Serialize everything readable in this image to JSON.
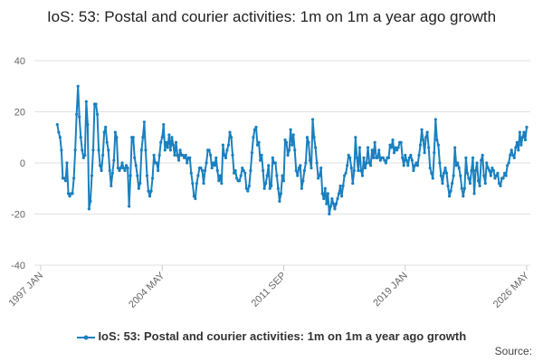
{
  "chart_data": {
    "type": "line",
    "title": "IoS: 53: Postal and courier activities: 1m on 1m a year ago growth",
    "source_label": "Source:",
    "grid": true,
    "ylim": [
      -40,
      40
    ],
    "yticks": [
      -40,
      -20,
      0,
      20,
      40
    ],
    "categories": [
      "1997 JAN",
      null,
      null,
      null,
      null,
      null,
      null,
      null,
      null,
      null,
      null,
      null,
      null,
      null,
      null,
      null,
      null,
      null,
      null,
      null,
      null,
      null,
      null,
      null,
      null,
      null,
      null,
      null,
      null,
      null,
      null,
      null,
      null,
      null,
      null,
      null,
      null,
      null,
      null,
      null,
      null,
      null,
      null,
      null,
      null,
      null,
      null,
      null,
      null,
      null,
      null,
      null,
      null,
      null,
      null,
      null,
      null,
      null,
      null,
      null,
      null,
      null,
      null,
      null,
      null,
      null,
      null,
      null,
      null,
      null,
      null,
      null,
      null,
      null,
      null,
      null,
      null,
      null,
      null,
      null,
      null,
      null,
      null,
      null,
      null,
      null,
      null,
      null,
      "2004 MAY",
      null,
      null,
      null,
      null,
      null,
      null,
      null,
      null,
      null,
      null,
      null,
      null,
      null,
      null,
      null,
      null,
      null,
      null,
      null,
      null,
      null,
      null,
      null,
      null,
      null,
      null,
      null,
      null,
      null,
      null,
      null,
      null,
      null,
      null,
      null,
      null,
      null,
      null,
      null,
      null,
      null,
      null,
      null,
      null,
      null,
      null,
      null,
      null,
      null,
      null,
      null,
      null,
      null,
      null,
      null,
      null,
      null,
      null,
      null,
      null,
      null,
      null,
      null,
      null,
      null,
      null,
      null,
      null,
      null,
      null,
      null,
      null,
      null,
      null,
      null,
      null,
      null,
      null,
      null,
      null,
      null,
      null,
      null,
      null,
      null,
      null,
      null,
      "2011 SEP",
      null,
      null,
      null,
      null,
      null,
      null,
      null,
      null,
      null,
      null,
      null,
      null,
      null,
      null,
      null,
      null,
      null,
      null,
      null,
      null,
      null,
      null,
      null,
      null,
      null,
      null,
      null,
      null,
      null,
      null,
      null,
      null,
      null,
      null,
      null,
      null,
      null,
      null,
      null,
      null,
      null,
      null,
      null,
      null,
      null,
      null,
      null,
      null,
      null,
      null,
      null,
      null,
      null,
      null,
      null,
      null,
      null,
      null,
      null,
      null,
      null,
      null,
      null,
      null,
      null,
      null,
      null,
      null,
      null,
      null,
      null,
      null,
      null,
      null,
      null,
      null,
      null,
      null,
      null,
      null,
      null,
      null,
      null,
      null,
      null,
      null,
      null,
      "2019 JAN",
      null,
      null,
      null,
      null,
      null,
      null,
      null,
      null,
      null,
      null,
      null,
      null,
      null,
      null,
      null,
      null,
      null,
      null,
      null,
      null,
      null,
      null,
      null,
      null,
      null,
      null,
      null,
      null,
      null,
      null,
      null,
      null,
      null,
      null,
      null,
      null,
      null,
      null,
      null,
      null,
      null,
      null,
      null,
      null,
      null,
      null,
      null,
      null,
      null,
      null,
      null,
      null,
      null,
      null,
      null,
      null,
      null,
      null,
      null,
      null,
      null,
      null,
      null,
      null,
      null,
      null,
      null,
      null,
      null,
      null,
      null,
      null,
      null,
      null,
      null,
      null,
      null,
      null,
      null,
      null,
      null,
      null,
      null,
      null,
      null,
      null,
      null,
      "2026 MAY"
    ],
    "series": [
      {
        "name": "IoS: 53: Postal and courier activities: 1m on 1m a year ago growth",
        "color": "#1a80c0",
        "values": [
          null,
          null,
          null,
          null,
          null,
          null,
          null,
          null,
          null,
          null,
          null,
          null,
          15,
          12,
          10,
          5,
          -6,
          -6,
          -7,
          0,
          -12,
          -13,
          -12,
          -12,
          -6,
          5,
          19,
          30,
          18,
          10,
          5,
          2,
          3,
          24,
          15,
          -18,
          -15,
          -5,
          5,
          23,
          23,
          19,
          5,
          -1,
          -3,
          3,
          12,
          14,
          8,
          5,
          -3,
          -9,
          -4,
          1,
          12,
          10,
          -2,
          -3,
          -2,
          0,
          -2,
          -3,
          -1,
          -2,
          -17,
          -5,
          10,
          10,
          2,
          -1,
          -5,
          -10,
          -8,
          5,
          10,
          16,
          5,
          -5,
          -11,
          -13,
          -11,
          -6,
          3,
          0,
          0,
          -3,
          3,
          8,
          10,
          15,
          5,
          8,
          6,
          11,
          5,
          10,
          7,
          3,
          8,
          3,
          1,
          5,
          3,
          3,
          2,
          3,
          0,
          2,
          2,
          -4,
          -8,
          -13,
          -14,
          -8,
          -5,
          -2,
          -2,
          -3,
          -8,
          -3,
          0,
          5,
          5,
          3,
          -2,
          0,
          -1,
          2,
          -3,
          -7,
          -5,
          -8,
          7,
          3,
          2,
          5,
          7,
          12,
          10,
          3,
          -4,
          -3,
          -6,
          -7,
          -7,
          -5,
          -2,
          -3,
          -4,
          -10,
          -11,
          -9,
          -3,
          4,
          10,
          13,
          14,
          7,
          8,
          1,
          3,
          -3,
          -10,
          -8,
          -5,
          -1,
          -10,
          -9,
          2,
          0,
          0,
          -5,
          -10,
          -15,
          -12,
          -5,
          -7,
          9,
          8,
          3,
          5,
          13,
          7,
          11,
          5,
          -3,
          -5,
          -2,
          -1,
          -10,
          -7,
          -3,
          0,
          10,
          8,
          1,
          -2,
          17,
          10,
          6,
          0,
          -6,
          -5,
          -2,
          -12,
          -14,
          -10,
          -16,
          -12,
          -20,
          -17,
          -14,
          -16,
          -18,
          -16,
          -14,
          -12,
          -9,
          -13,
          -9,
          -5,
          -4,
          -1,
          3,
          2,
          -2,
          -8,
          -3,
          10,
          2,
          -3,
          6,
          -3,
          -5,
          2,
          -2,
          0,
          6,
          0,
          -1,
          5,
          2,
          8,
          2,
          2,
          5,
          1,
          2,
          2,
          1,
          0,
          2,
          2,
          7,
          6,
          9,
          4,
          6,
          5,
          6,
          8,
          8,
          2,
          -1,
          3,
          1,
          -1,
          2,
          3,
          1,
          -3,
          -1,
          0,
          -1,
          3,
          7,
          13,
          9,
          4,
          10,
          12,
          6,
          -2,
          -4,
          -6,
          4,
          17,
          9,
          7,
          0,
          -5,
          -8,
          -4,
          -2,
          -4,
          -9,
          -13,
          -11,
          -8,
          -5,
          6,
          -1,
          0,
          -2,
          -5,
          -10,
          -13,
          -10,
          2,
          -4,
          -6,
          -8,
          -3,
          2,
          -12,
          -3,
          0,
          -7,
          -9,
          1,
          3,
          -5,
          -8,
          0,
          -2,
          -3,
          -5,
          -2,
          -3,
          -6,
          -5,
          -4,
          -8,
          -9,
          -6,
          -6,
          -4,
          -5,
          -1,
          0,
          3,
          5,
          3,
          2,
          6,
          8,
          5,
          12,
          7,
          10,
          12,
          9,
          14
        ]
      }
    ]
  }
}
